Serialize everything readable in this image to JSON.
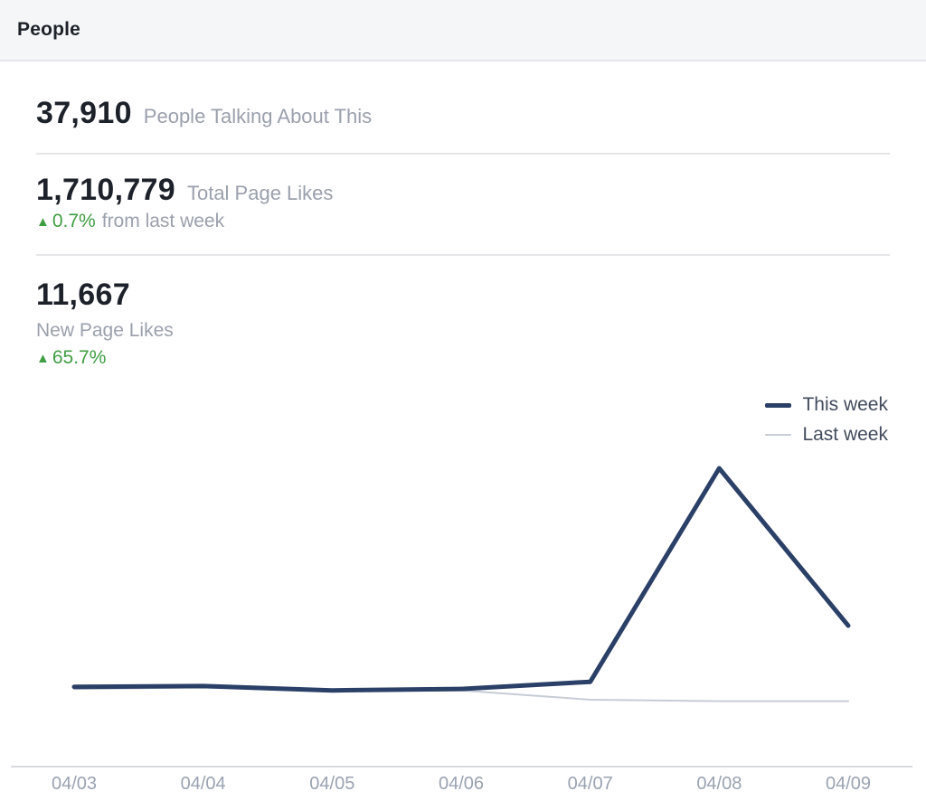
{
  "header": {
    "title": "People"
  },
  "stats": {
    "talking_about": {
      "value": "37,910",
      "label": "People Talking About This"
    },
    "total_likes": {
      "value": "1,710,779",
      "label": "Total Page Likes",
      "change": "0.7%",
      "change_suffix": "from last week"
    },
    "new_likes": {
      "value": "11,667",
      "label": "New Page Likes",
      "change": "65.7%"
    }
  },
  "icons": {
    "up_arrow": "▲"
  },
  "colors": {
    "header_bg": "#f5f6f7",
    "text_dark": "#1d2129",
    "text_gray": "#9aa0ac",
    "positive_green": "#3f9e42",
    "this_week_line": "#2b4067",
    "last_week_line": "#c7ccd6",
    "axis_line": "#d8dade"
  },
  "chart_data": {
    "type": "line",
    "x": [
      "04/03",
      "04/04",
      "04/05",
      "04/06",
      "04/07",
      "04/08",
      "04/09"
    ],
    "series": [
      {
        "name": "This week",
        "values": [
          1110,
          1120,
          1060,
          1080,
          1180,
          4150,
          1960
        ]
      },
      {
        "name": "Last week",
        "values": [
          1080,
          1100,
          1050,
          1060,
          930,
          910,
          910
        ]
      }
    ],
    "title": "",
    "xlabel": "",
    "ylabel": "",
    "ylim": [
      0,
      4600
    ],
    "grid": false,
    "y_axis_visible": false,
    "legend_position": "top-right",
    "values_are_estimates": true
  }
}
